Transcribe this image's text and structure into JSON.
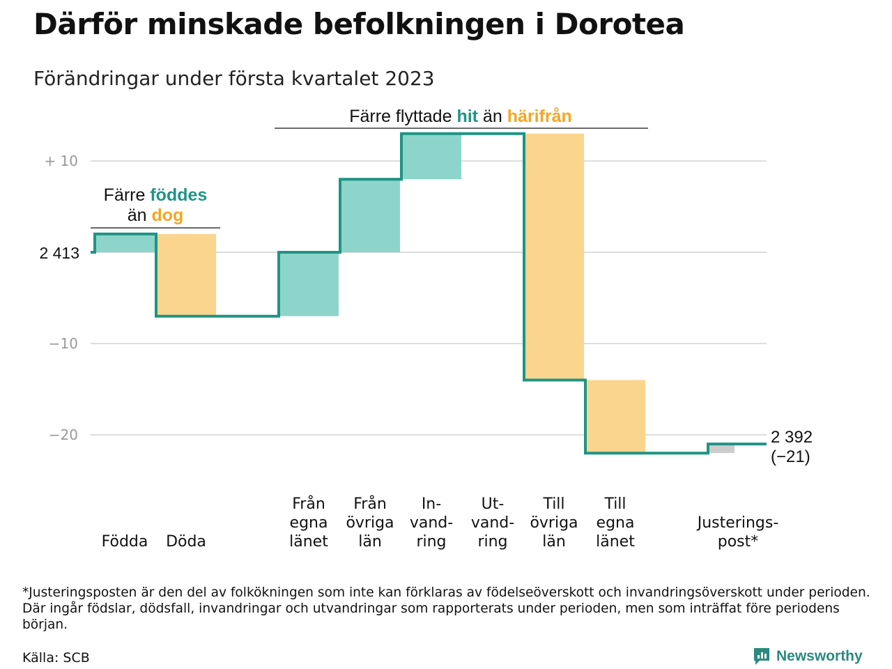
{
  "title": "Därför minskade befolkningen i Dorotea",
  "subtitle": "Förändringar under första kvartalet 2023",
  "chart_data": {
    "type": "waterfall",
    "start_value": 2413,
    "start_label": "2 413",
    "end_label": "2 392",
    "end_change_label": "(−21)",
    "y_ticks": [
      {
        "value": 10,
        "label": "+ 10"
      },
      {
        "value": 0,
        "label": ""
      },
      {
        "value": -10,
        "label": "−10"
      },
      {
        "value": -20,
        "label": "−20"
      }
    ],
    "ylim": [
      -22,
      13
    ],
    "steps": [
      {
        "label_lines": [
          "Födda"
        ],
        "change": 2,
        "kind": "positive"
      },
      {
        "label_lines": [
          "Döda"
        ],
        "change": -9,
        "kind": "negative"
      },
      {
        "label_lines": [],
        "change": 0,
        "kind": "gap"
      },
      {
        "label_lines": [
          "Från",
          "egna",
          "länet"
        ],
        "change": 7,
        "kind": "positive"
      },
      {
        "label_lines": [
          "Från",
          "övriga",
          "län"
        ],
        "change": 8,
        "kind": "positive"
      },
      {
        "label_lines": [
          "In-",
          "vand-",
          "ring"
        ],
        "change": 5,
        "kind": "positive"
      },
      {
        "label_lines": [
          "Ut-",
          "vand-",
          "ring"
        ],
        "change": 0,
        "kind": "negative"
      },
      {
        "label_lines": [
          "Till",
          "övriga",
          "län"
        ],
        "change": -27,
        "kind": "negative"
      },
      {
        "label_lines": [
          "Till",
          "egna",
          "länet"
        ],
        "change": -8,
        "kind": "negative"
      },
      {
        "label_lines": [],
        "change": 0,
        "kind": "gap"
      },
      {
        "label_lines": [
          "Justerings-",
          "post*"
        ],
        "change": 1,
        "kind": "adjustment"
      }
    ],
    "annotations": [
      {
        "id": "births",
        "line1": "Färre ",
        "highlight1": "föddes",
        "line2": "än ",
        "highlight2": "dog"
      },
      {
        "id": "moves",
        "line1": "Färre flyttade ",
        "highlight1": "hit",
        "mid": " än ",
        "highlight2": "härifrån"
      }
    ],
    "colors": {
      "line": "#1f9484",
      "positive": "#8dd5cb",
      "negative": "#fad58e",
      "adjustment": "#cccccc",
      "highlight_positive": "#1f9484",
      "highlight_negative": "#f5a623",
      "grid": "#dddddd",
      "tick_text": "#999999"
    }
  },
  "footnote": "*Justeringsposten är den del av folkökningen som inte kan förklaras av födelseöverskott och invandringsöverskott under perioden. Där ingår födslar, dödsfall, invandringar och utvandringar som rapporterats under perioden, men som inträffat före periodens början.",
  "source": "Källa: SCB",
  "brand": "Newsworthy"
}
